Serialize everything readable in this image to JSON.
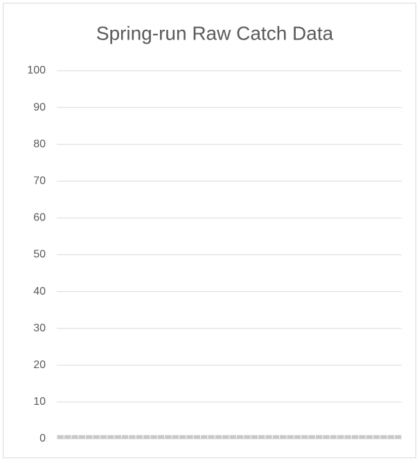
{
  "chart_data": {
    "type": "bar",
    "title": "Spring-run Raw Catch Data",
    "categories": [
      null,
      null,
      null,
      null,
      null,
      null,
      null,
      null,
      null,
      null,
      null,
      null,
      null,
      null,
      null,
      null,
      null,
      null,
      null,
      null,
      null,
      null,
      null,
      null,
      null,
      null,
      null,
      null,
      null,
      null,
      null,
      null,
      null,
      null,
      null,
      null,
      null,
      null,
      null,
      null,
      null,
      null,
      null,
      null,
      null,
      null,
      null,
      null
    ],
    "values": [
      1,
      1,
      1,
      1,
      1,
      1,
      1,
      1,
      1,
      1,
      1,
      1,
      1,
      1,
      1,
      1,
      1,
      1,
      1,
      1,
      1,
      1,
      1,
      1,
      1,
      1,
      1,
      1,
      1,
      1,
      1,
      1,
      1,
      1,
      1,
      1,
      1,
      1,
      1,
      1,
      1,
      1,
      1,
      1,
      1,
      1,
      1,
      1
    ],
    "color": "#c9c9c9",
    "ylim": [
      0,
      100
    ],
    "yticks": [
      0,
      10,
      20,
      30,
      40,
      50,
      60,
      70,
      80,
      90,
      100
    ],
    "grid": true
  }
}
